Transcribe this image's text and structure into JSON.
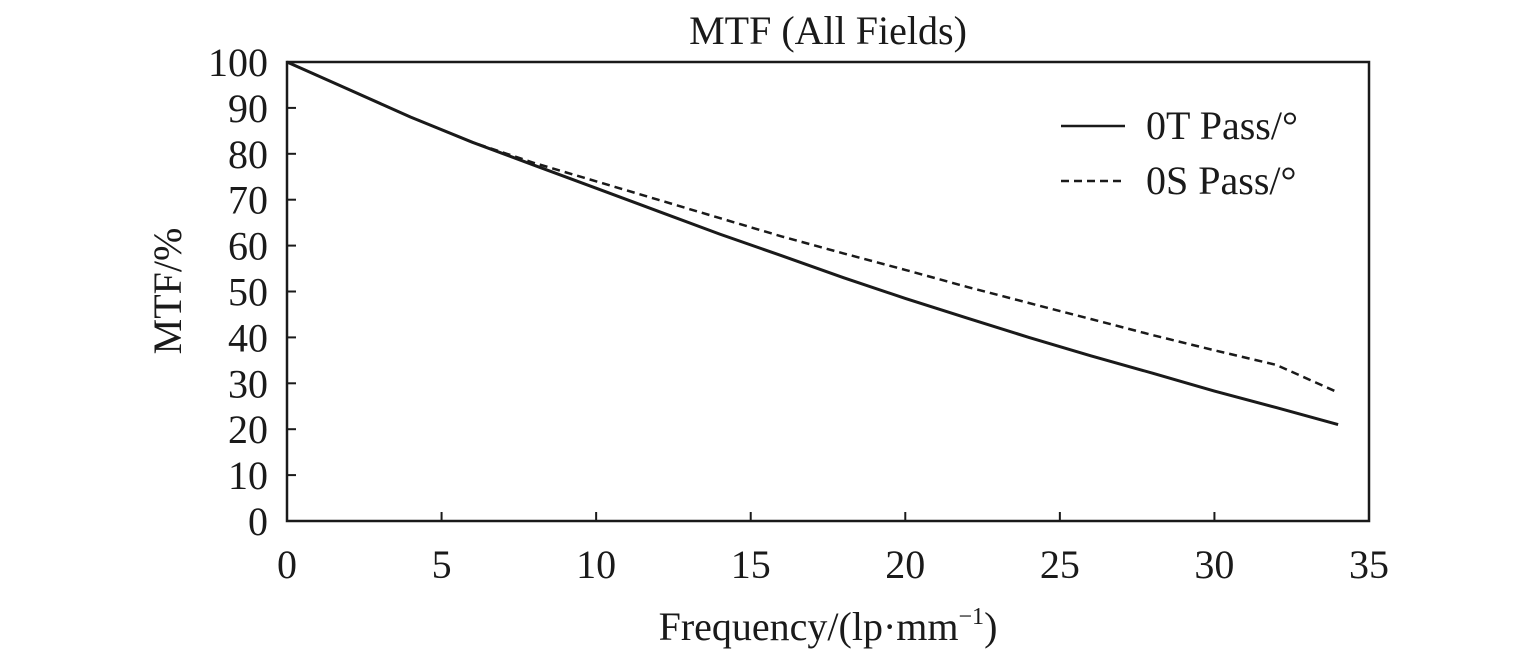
{
  "chart_data": {
    "type": "line",
    "title": "MTF (All Fields)",
    "xlabel": "Frequency/(lp·mm",
    "xlabel_sup": "−1",
    "xlabel_close": ")",
    "ylabel": "MTF/%",
    "xlim": [
      0,
      35
    ],
    "ylim": [
      0,
      100
    ],
    "xticks": [
      0,
      5,
      10,
      15,
      20,
      25,
      30,
      35
    ],
    "yticks": [
      0,
      10,
      20,
      30,
      40,
      50,
      60,
      70,
      80,
      90,
      100
    ],
    "legend_position": "top-right",
    "series": [
      {
        "name": "0T Pass/°",
        "style": "solid",
        "x": [
          0,
          2,
          4,
          6,
          8,
          10,
          12,
          14,
          16,
          18,
          20,
          22,
          24,
          26,
          28,
          30,
          32,
          34
        ],
        "y": [
          100,
          94,
          88,
          82.5,
          77.5,
          72.5,
          67.5,
          62.5,
          57.8,
          53,
          48.5,
          44.2,
          40,
          36,
          32.2,
          28.3,
          24.7,
          21
        ]
      },
      {
        "name": "0S Pass/°",
        "style": "dashed",
        "x": [
          0,
          2,
          4,
          6,
          8,
          10,
          12,
          14,
          16,
          18,
          20,
          22,
          24,
          26,
          28,
          30,
          32,
          34
        ],
        "y": [
          100,
          94,
          88,
          82.5,
          78,
          74,
          70,
          66,
          62,
          58.3,
          54.7,
          51,
          47.5,
          44,
          40.5,
          37.2,
          34,
          28
        ]
      }
    ]
  }
}
